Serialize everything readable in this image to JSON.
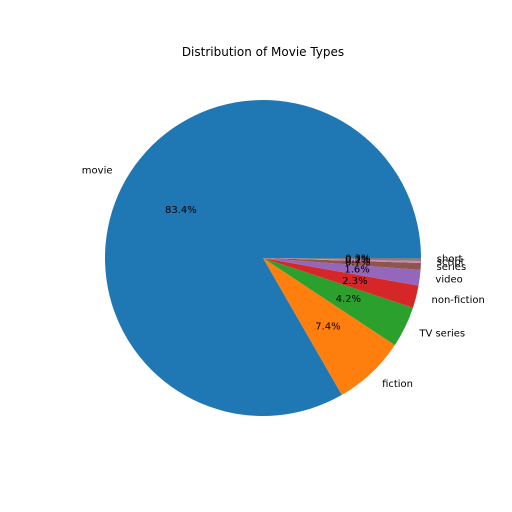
{
  "chart_data": {
    "type": "pie",
    "title": "Distribution of Movie Types",
    "categories": [
      "movie",
      "fiction",
      "TV series",
      "non-fiction",
      "video",
      "series",
      "script",
      "short"
    ],
    "values": [
      83.4,
      7.4,
      4.2,
      2.3,
      1.6,
      0.7,
      0.2,
      0.3
    ],
    "percent_labels": [
      "83.4%",
      "7.4%",
      "4.2%",
      "2.3%",
      "1.6%",
      "0.7%",
      "0.2%",
      "0.3%"
    ],
    "colors": [
      "#1f77b4",
      "#ff7f0e",
      "#2ca02c",
      "#d62728",
      "#9467bd",
      "#8c564b",
      "#e377c2",
      "#7f7f7f"
    ],
    "start_angle": 0,
    "direction": "counterclockwise",
    "legend": "none"
  }
}
